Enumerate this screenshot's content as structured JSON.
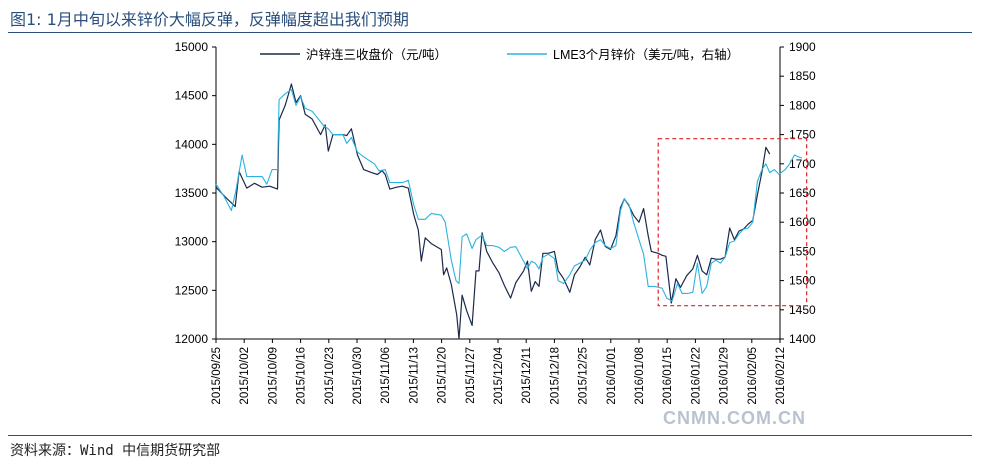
{
  "title": "图1: 1月中旬以来锌价大幅反弹，反弹幅度超出我们预期",
  "source": "资料来源：Wind 中信期货研究部",
  "watermark": "CNMN.COM.CN",
  "colors": {
    "shfe": "#1b2a4a",
    "lme": "#2bb3e0",
    "highlight": "#d9262c",
    "title": "#2a4f7d"
  },
  "chart_data": {
    "type": "line",
    "x_ticks": [
      "2015/09/25",
      "2015/10/02",
      "2015/10/09",
      "2015/10/16",
      "2015/10/23",
      "2015/10/30",
      "2015/11/06",
      "2015/11/13",
      "2015/11/20",
      "2015/11/27",
      "2015/12/04",
      "2015/12/11",
      "2015/12/18",
      "2015/12/25",
      "2016/01/01",
      "2016/01/08",
      "2016/01/15",
      "2016/01/22",
      "2016/01/29",
      "2016/02/05",
      "2016/02/12"
    ],
    "y_left": {
      "min": 12000,
      "max": 15000,
      "ticks": [
        12000,
        12500,
        13000,
        13500,
        14000,
        14500,
        15000
      ]
    },
    "y_right": {
      "min": 1400,
      "max": 1900,
      "ticks": [
        1400,
        1450,
        1500,
        1550,
        1600,
        1650,
        1700,
        1750,
        1800,
        1850,
        1900
      ]
    },
    "legend_position": "top",
    "series": [
      {
        "name": "沪锌连三收盘价（元/吨）",
        "axis": "left",
        "color": "#1b2a4a",
        "points": [
          [
            0,
            13560
          ],
          [
            1.2,
            13460
          ],
          [
            2.5,
            13360
          ],
          [
            3,
            13720
          ],
          [
            4,
            13550
          ],
          [
            5,
            13600
          ],
          [
            6,
            13560
          ],
          [
            7,
            13570
          ],
          [
            8,
            13540
          ],
          [
            8.2,
            14250
          ],
          [
            9,
            14400
          ],
          [
            9.8,
            14620
          ],
          [
            10.4,
            14430
          ],
          [
            11,
            14500
          ],
          [
            11.6,
            14310
          ],
          [
            12.5,
            14260
          ],
          [
            13.6,
            14100
          ],
          [
            14.2,
            14200
          ],
          [
            14.6,
            13930
          ],
          [
            15.2,
            14100
          ],
          [
            16.5,
            14100
          ],
          [
            17,
            14090
          ],
          [
            17.6,
            14160
          ],
          [
            18.4,
            13890
          ],
          [
            19.2,
            13740
          ],
          [
            20.2,
            13710
          ],
          [
            21,
            13690
          ],
          [
            21.6,
            13730
          ],
          [
            22,
            13690
          ],
          [
            22.6,
            13540
          ],
          [
            23.5,
            13560
          ],
          [
            24.2,
            13570
          ],
          [
            25,
            13550
          ],
          [
            25.7,
            13280
          ],
          [
            26.3,
            13120
          ],
          [
            26.7,
            12800
          ],
          [
            27.2,
            13040
          ],
          [
            28,
            12980
          ],
          [
            29.3,
            12920
          ],
          [
            29.6,
            12660
          ],
          [
            30,
            12730
          ],
          [
            30.6,
            12560
          ],
          [
            31.3,
            12250
          ],
          [
            31.6,
            12000
          ],
          [
            32,
            12450
          ],
          [
            32.6,
            12290
          ],
          [
            33.3,
            12140
          ],
          [
            33.8,
            12700
          ],
          [
            34.2,
            12700
          ],
          [
            34.6,
            13090
          ],
          [
            35.2,
            12900
          ],
          [
            36,
            12780
          ],
          [
            36.8,
            12680
          ],
          [
            37.5,
            12550
          ],
          [
            38.3,
            12420
          ],
          [
            39,
            12580
          ],
          [
            40,
            12700
          ],
          [
            40.5,
            12800
          ],
          [
            41,
            12490
          ],
          [
            41.5,
            12590
          ],
          [
            42,
            12540
          ],
          [
            42.5,
            12880
          ],
          [
            43.2,
            12880
          ],
          [
            44,
            12900
          ],
          [
            44.5,
            12700
          ],
          [
            45.2,
            12620
          ],
          [
            46,
            12480
          ],
          [
            46.6,
            12660
          ],
          [
            47.3,
            12740
          ],
          [
            48,
            12840
          ],
          [
            48.6,
            12760
          ],
          [
            49.3,
            13020
          ],
          [
            50,
            13120
          ],
          [
            50.6,
            12950
          ],
          [
            51.3,
            12920
          ],
          [
            52,
            13060
          ],
          [
            52.6,
            13350
          ],
          [
            53.1,
            13440
          ],
          [
            53.7,
            13370
          ],
          [
            54.3,
            13270
          ],
          [
            55,
            13200
          ],
          [
            55.6,
            13340
          ],
          [
            56.2,
            13060
          ],
          [
            56.6,
            12900
          ],
          [
            57.5,
            12880
          ],
          [
            58,
            12860
          ],
          [
            58.5,
            12850
          ],
          [
            59.2,
            12370
          ],
          [
            59.8,
            12620
          ],
          [
            60.4,
            12530
          ],
          [
            61.2,
            12650
          ],
          [
            62,
            12720
          ],
          [
            62.6,
            12860
          ],
          [
            63.2,
            12700
          ],
          [
            63.8,
            12660
          ],
          [
            64.4,
            12830
          ],
          [
            65,
            12820
          ],
          [
            65.6,
            12820
          ],
          [
            66.2,
            12840
          ],
          [
            66.8,
            13140
          ],
          [
            67.4,
            13020
          ],
          [
            68,
            13110
          ],
          [
            68.6,
            13130
          ],
          [
            69.2,
            13180
          ],
          [
            69.8,
            13220
          ],
          [
            70.4,
            13480
          ],
          [
            71,
            13720
          ],
          [
            71.5,
            13970
          ],
          [
            72,
            13900
          ]
        ]
      },
      {
        "name": "LME3个月锌价（美元/吨，右轴）",
        "axis": "right",
        "color": "#2bb3e0",
        "points": [
          [
            0,
            1665
          ],
          [
            1,
            1645
          ],
          [
            2,
            1620
          ],
          [
            2.6,
            1655
          ],
          [
            3.4,
            1715
          ],
          [
            4,
            1678
          ],
          [
            5,
            1678
          ],
          [
            6,
            1678
          ],
          [
            6.6,
            1665
          ],
          [
            7.3,
            1690
          ],
          [
            8,
            1690
          ],
          [
            8.2,
            1810
          ],
          [
            9,
            1820
          ],
          [
            9.8,
            1827
          ],
          [
            10.4,
            1800
          ],
          [
            11,
            1815
          ],
          [
            11.6,
            1795
          ],
          [
            12.5,
            1790
          ],
          [
            13.4,
            1775
          ],
          [
            14,
            1765
          ],
          [
            14.6,
            1760
          ],
          [
            15.2,
            1750
          ],
          [
            16.5,
            1750
          ],
          [
            17,
            1735
          ],
          [
            17.6,
            1745
          ],
          [
            18.4,
            1720
          ],
          [
            19.2,
            1712
          ],
          [
            20,
            1705
          ],
          [
            20.6,
            1700
          ],
          [
            21.2,
            1688
          ],
          [
            22,
            1690
          ],
          [
            22.6,
            1668
          ],
          [
            23.4,
            1668
          ],
          [
            24.3,
            1668
          ],
          [
            25,
            1672
          ],
          [
            25.7,
            1630
          ],
          [
            26.3,
            1605
          ],
          [
            27.2,
            1605
          ],
          [
            28,
            1615
          ],
          [
            29.3,
            1612
          ],
          [
            29.8,
            1600
          ],
          [
            30.6,
            1535
          ],
          [
            31.2,
            1500
          ],
          [
            31.6,
            1495
          ],
          [
            32,
            1575
          ],
          [
            32.6,
            1580
          ],
          [
            33.3,
            1555
          ],
          [
            33.8,
            1570
          ],
          [
            34.6,
            1578
          ],
          [
            35.2,
            1560
          ],
          [
            36,
            1560
          ],
          [
            36.8,
            1557
          ],
          [
            37.5,
            1550
          ],
          [
            38.3,
            1557
          ],
          [
            39,
            1558
          ],
          [
            40,
            1533
          ],
          [
            40.5,
            1520
          ],
          [
            41,
            1533
          ],
          [
            41.5,
            1530
          ],
          [
            42,
            1520
          ],
          [
            42.5,
            1540
          ],
          [
            43.2,
            1545
          ],
          [
            44,
            1538
          ],
          [
            44.5,
            1500
          ],
          [
            45.2,
            1495
          ],
          [
            46,
            1510
          ],
          [
            46.6,
            1525
          ],
          [
            47.3,
            1530
          ],
          [
            48,
            1535
          ],
          [
            48.6,
            1552
          ],
          [
            49.3,
            1565
          ],
          [
            50,
            1570
          ],
          [
            50.6,
            1560
          ],
          [
            51.3,
            1555
          ],
          [
            52,
            1560
          ],
          [
            52.6,
            1620
          ],
          [
            53.1,
            1640
          ],
          [
            53.7,
            1630
          ],
          [
            54.3,
            1600
          ],
          [
            55,
            1570
          ],
          [
            55.6,
            1545
          ],
          [
            56.2,
            1490
          ],
          [
            57,
            1490
          ],
          [
            58,
            1487
          ],
          [
            58.6,
            1470
          ],
          [
            59.3,
            1465
          ],
          [
            60,
            1495
          ],
          [
            60.6,
            1478
          ],
          [
            61.4,
            1478
          ],
          [
            62,
            1480
          ],
          [
            62.6,
            1530
          ],
          [
            63.2,
            1478
          ],
          [
            63.8,
            1490
          ],
          [
            64.4,
            1530
          ],
          [
            65,
            1535
          ],
          [
            65.6,
            1530
          ],
          [
            66.2,
            1540
          ],
          [
            66.8,
            1565
          ],
          [
            67.4,
            1568
          ],
          [
            68,
            1580
          ],
          [
            68.6,
            1588
          ],
          [
            69.2,
            1590
          ],
          [
            69.8,
            1600
          ],
          [
            70.4,
            1670
          ],
          [
            71,
            1690
          ],
          [
            71.5,
            1700
          ],
          [
            72,
            1685
          ],
          [
            72.6,
            1690
          ],
          [
            73.2,
            1682
          ],
          [
            74,
            1690
          ],
          [
            74.6,
            1700
          ],
          [
            75.2,
            1715
          ],
          [
            75.7,
            1712
          ],
          [
            76.2,
            1710
          ]
        ]
      }
    ],
    "annotations": [
      {
        "type": "dashed-rectangle",
        "x_from": 57.5,
        "x_to": 76.8,
        "y_right_from": 1457,
        "y_right_to": 1743
      }
    ]
  }
}
